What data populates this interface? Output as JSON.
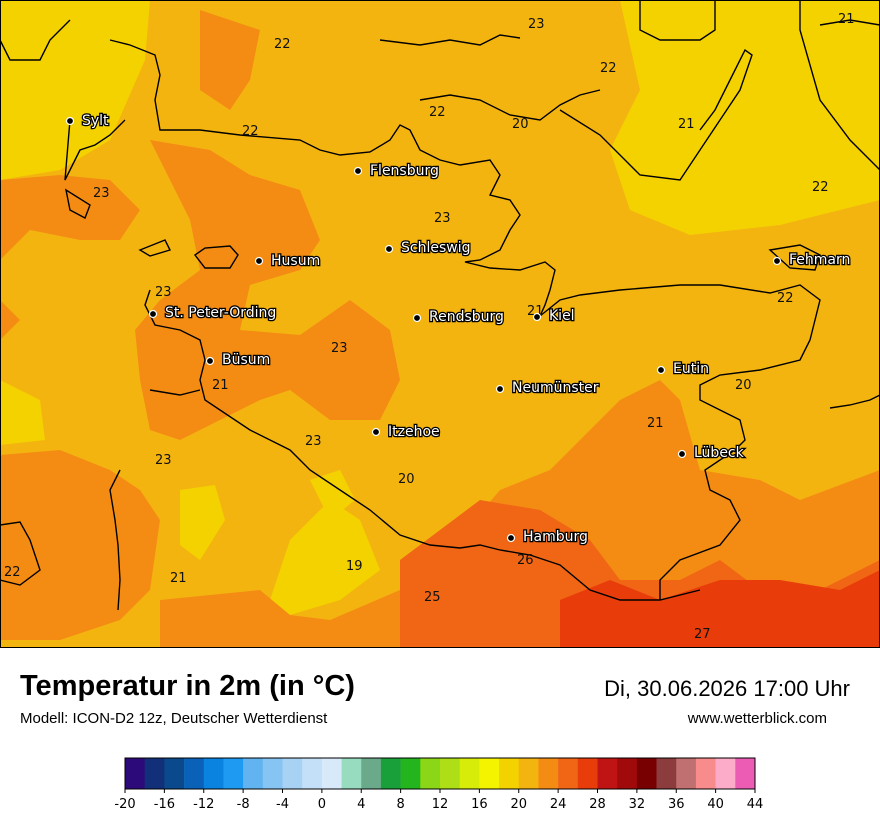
{
  "title": "Temperatur in 2m (in °C)",
  "subtitle": "Modell: ICON-D2 12z, Deutscher Wetterdienst",
  "datetime": "Di, 30.06.2026 17:00 Uhr",
  "website": "www.wetterblick.com",
  "cities": [
    {
      "name": "Sylt"
    },
    {
      "name": "Flensburg"
    },
    {
      "name": "Schleswig"
    },
    {
      "name": "Husum"
    },
    {
      "name": "St. Peter-Ording"
    },
    {
      "name": "Rendsburg"
    },
    {
      "name": "Kiel"
    },
    {
      "name": "Büsum"
    },
    {
      "name": "Neumünster"
    },
    {
      "name": "Eutin"
    },
    {
      "name": "Itzehoe"
    },
    {
      "name": "Lübeck"
    },
    {
      "name": "Hamburg"
    },
    {
      "name": "Fehmarn"
    }
  ],
  "temperature_labels": [
    "23",
    "21",
    "22",
    "22",
    "22",
    "20",
    "21",
    "22",
    "23",
    "22",
    "23",
    "23",
    "22",
    "21",
    "23",
    "21",
    "20",
    "23",
    "23",
    "20",
    "21",
    "19",
    "26",
    "22",
    "21",
    "25",
    "27"
  ],
  "legend": {
    "ticks": [
      "-20",
      "-16",
      "-12",
      "-8",
      "-4",
      "0",
      "4",
      "8",
      "12",
      "16",
      "20",
      "24",
      "28",
      "32",
      "36",
      "40",
      "44"
    ],
    "colors": [
      "#2d0a7a",
      "#12307a",
      "#0a4a8c",
      "#0a62b8",
      "#0a82e0",
      "#1e9af2",
      "#62b4f0",
      "#86c4f4",
      "#a8d2f4",
      "#c4e0f8",
      "#d8eafa",
      "#98dcc0",
      "#6aaa8a",
      "#1aa03a",
      "#24b41e",
      "#8cd618",
      "#aede16",
      "#d8ec0a",
      "#f4f400",
      "#f4d200",
      "#f4b410",
      "#f48c14",
      "#f06614",
      "#e83c0a",
      "#c01414",
      "#a00a0a",
      "#780000",
      "#8c3c3c",
      "#c07070",
      "#f88c8c",
      "#fcacc8",
      "#ec5cb4"
    ]
  }
}
